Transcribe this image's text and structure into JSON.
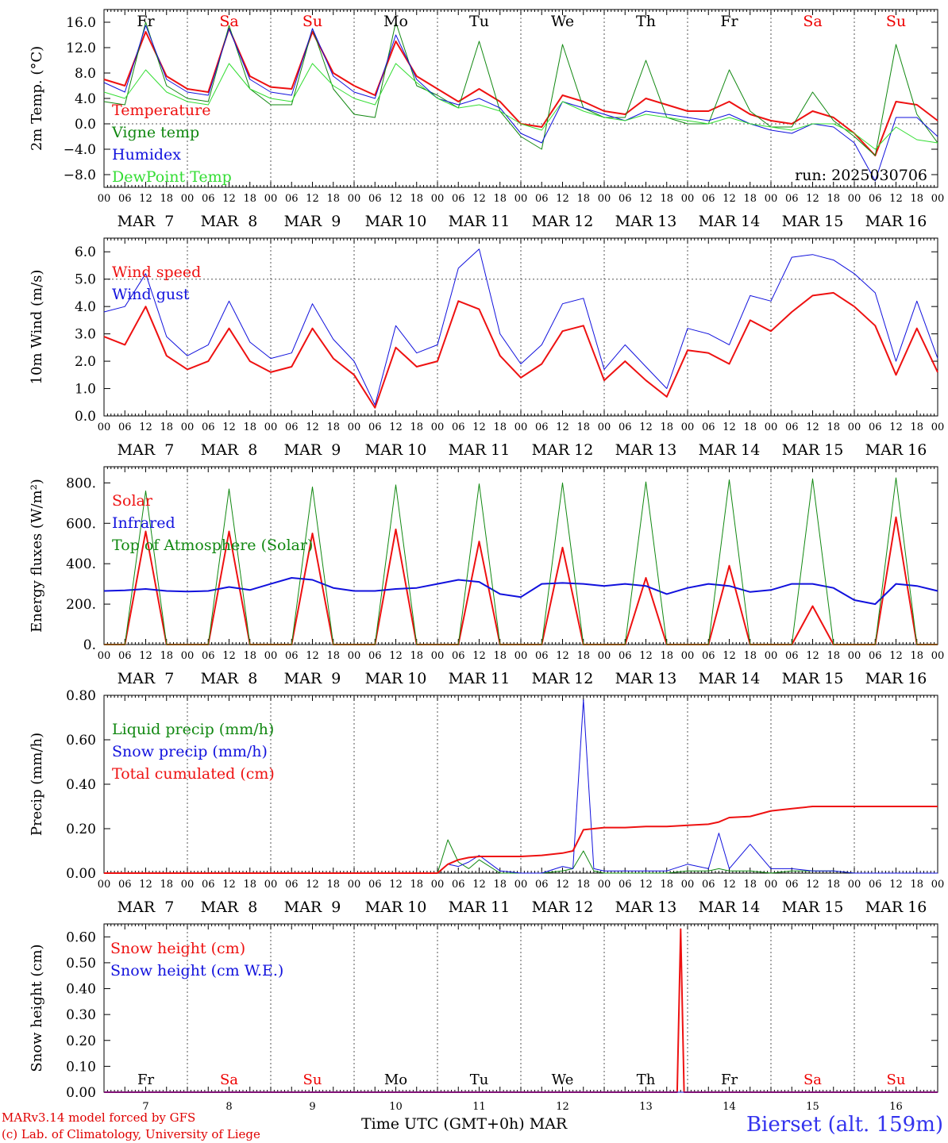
{
  "run_label": "run: 2025030706",
  "hour_ticks": [
    "00",
    "06",
    "12",
    "18"
  ],
  "last_hour_tick": "00",
  "date_labels": [
    "MAR  7",
    "MAR  8",
    "MAR  9",
    "MAR 10",
    "MAR 11",
    "MAR 12",
    "MAR 13",
    "MAR 14",
    "MAR 15",
    "MAR 16"
  ],
  "weekdays": [
    {
      "label": "Fr",
      "color": "#000000"
    },
    {
      "label": "Sa",
      "color": "#ee0000"
    },
    {
      "label": "Su",
      "color": "#ee0000"
    },
    {
      "label": "Mo",
      "color": "#000000"
    },
    {
      "label": "Tu",
      "color": "#000000"
    },
    {
      "label": "We",
      "color": "#000000"
    },
    {
      "label": "Th",
      "color": "#000000"
    },
    {
      "label": "Fr",
      "color": "#000000"
    },
    {
      "label": "Sa",
      "color": "#ee0000"
    },
    {
      "label": "Su",
      "color": "#ee0000"
    }
  ],
  "day_numbers": [
    "7",
    "8",
    "9",
    "10",
    "11",
    "12",
    "13",
    "14",
    "15",
    "16"
  ],
  "colors": {
    "red": "#ee1111",
    "green": "#118811",
    "blue": "#1111dd",
    "lightgreen": "#33dd33"
  },
  "footer": {
    "model_line": "MARv3.14 model forced by GFS",
    "lab_line": "(c) Lab. of Climatology, University of Liege",
    "time_axis": "Time UTC (GMT+0h)",
    "month": "MAR",
    "station": "Bierset (alt. 159m)"
  },
  "chart_data": [
    {
      "type": "line",
      "ylabel": "2m Temp. (°C)",
      "ylim": [
        -10,
        18
      ],
      "yticks": [
        -8,
        -4,
        0,
        4,
        8,
        12,
        16
      ],
      "ytick_labels": [
        "−8.0",
        "−4.0",
        "0.0",
        "4.0",
        "8.0",
        "12.0",
        "16.0"
      ],
      "ref_line": 0,
      "x_hours": [
        0,
        6,
        12,
        18,
        24,
        30,
        36,
        42,
        48,
        54,
        60,
        66,
        72,
        78,
        84,
        90,
        96,
        102,
        108,
        114,
        120,
        126,
        132,
        138,
        144,
        150,
        156,
        162,
        168,
        174,
        180,
        186,
        192,
        198,
        204,
        210,
        216,
        222,
        228,
        234,
        240
      ],
      "series": [
        {
          "name": "Temperature",
          "color": "red",
          "width": 2,
          "values": [
            7.0,
            6.0,
            14.5,
            7.5,
            5.5,
            5.0,
            15.0,
            7.5,
            5.8,
            5.5,
            14.5,
            8.0,
            6.0,
            4.5,
            13.0,
            7.5,
            5.5,
            3.5,
            5.5,
            3.5,
            0.0,
            -0.5,
            4.5,
            3.5,
            2.0,
            1.5,
            4.0,
            3.0,
            2.0,
            2.0,
            3.5,
            1.5,
            0.5,
            0.0,
            2.0,
            1.0,
            -1.5,
            -5.0,
            3.5,
            3.0,
            0.5
          ]
        },
        {
          "name": "Vigne temp",
          "color": "green",
          "width": 1,
          "values": [
            3.5,
            3.0,
            16.0,
            6.0,
            4.0,
            3.5,
            15.5,
            5.5,
            3.0,
            3.0,
            15.0,
            5.5,
            1.5,
            1.0,
            16.0,
            6.0,
            4.5,
            2.5,
            13.0,
            2.0,
            -2.0,
            -4.0,
            12.5,
            2.5,
            1.0,
            1.0,
            10.0,
            1.0,
            0.0,
            0.0,
            8.5,
            2.0,
            -0.5,
            -0.5,
            5.0,
            0.5,
            -2.0,
            -5.0,
            12.5,
            1.5,
            -3.0
          ]
        },
        {
          "name": "Humidex",
          "color": "blue",
          "width": 1,
          "values": [
            6.5,
            5.0,
            15.5,
            7.0,
            5.0,
            4.5,
            15.0,
            7.0,
            5.0,
            4.5,
            15.0,
            7.5,
            5.0,
            4.0,
            14.0,
            7.0,
            4.0,
            3.0,
            4.0,
            2.5,
            -1.5,
            -3.0,
            3.5,
            2.5,
            1.5,
            0.5,
            2.0,
            1.5,
            1.0,
            0.5,
            1.5,
            0.0,
            -1.0,
            -1.5,
            0.0,
            -0.5,
            -3.0,
            -9.0,
            1.0,
            1.0,
            -2.0
          ]
        },
        {
          "name": "DewPoint Temp",
          "color": "lightgreen",
          "width": 1,
          "values": [
            5.0,
            4.0,
            8.5,
            5.0,
            3.5,
            3.0,
            9.5,
            5.5,
            4.0,
            3.5,
            9.5,
            6.0,
            4.0,
            3.0,
            9.5,
            6.5,
            4.0,
            2.5,
            3.0,
            2.0,
            0.0,
            -1.0,
            3.5,
            2.0,
            1.0,
            0.5,
            1.5,
            1.0,
            0.5,
            0.0,
            1.0,
            0.0,
            -0.5,
            -1.0,
            0.0,
            0.0,
            -1.5,
            -4.0,
            -0.5,
            -2.5,
            -3.0
          ]
        }
      ]
    },
    {
      "type": "line",
      "ylabel": "10m Wind (m/s)",
      "ylim": [
        0,
        6.5
      ],
      "yticks": [
        0,
        1,
        2,
        3,
        4,
        5,
        6
      ],
      "ytick_labels": [
        "0.0",
        "1.0",
        "2.0",
        "3.0",
        "4.0",
        "5.0",
        "6.0"
      ],
      "ref_line": 5,
      "x_hours": [
        0,
        6,
        12,
        18,
        24,
        30,
        36,
        42,
        48,
        54,
        60,
        66,
        72,
        78,
        84,
        90,
        96,
        102,
        108,
        114,
        120,
        126,
        132,
        138,
        144,
        150,
        156,
        162,
        168,
        174,
        180,
        186,
        192,
        198,
        204,
        210,
        216,
        222,
        228,
        234,
        240
      ],
      "series": [
        {
          "name": "Wind speed",
          "color": "red",
          "width": 2,
          "values": [
            2.9,
            2.6,
            4.0,
            2.2,
            1.7,
            2.0,
            3.2,
            2.0,
            1.6,
            1.8,
            3.2,
            2.1,
            1.5,
            0.3,
            2.5,
            1.8,
            2.0,
            4.2,
            3.9,
            2.2,
            1.4,
            1.9,
            3.1,
            3.3,
            1.3,
            2.0,
            1.3,
            0.7,
            2.4,
            2.3,
            1.9,
            3.5,
            3.1,
            3.8,
            4.4,
            4.5,
            4.0,
            3.3,
            1.5,
            3.2,
            1.6
          ]
        },
        {
          "name": "Wind gust",
          "color": "blue",
          "width": 1,
          "values": [
            3.8,
            4.0,
            5.2,
            2.9,
            2.2,
            2.6,
            4.2,
            2.7,
            2.1,
            2.3,
            4.1,
            2.8,
            2.0,
            0.4,
            3.3,
            2.3,
            2.6,
            5.4,
            6.1,
            3.0,
            1.9,
            2.6,
            4.1,
            4.3,
            1.7,
            2.6,
            1.8,
            1.0,
            3.2,
            3.0,
            2.6,
            4.4,
            4.2,
            5.8,
            5.9,
            5.7,
            5.2,
            4.5,
            2.0,
            4.2,
            2.1
          ]
        }
      ]
    },
    {
      "type": "line",
      "ylabel": "Energy fluxes (W/m²)",
      "ylim": [
        0,
        880
      ],
      "yticks": [
        0,
        200,
        400,
        600,
        800
      ],
      "ytick_labels": [
        "0.",
        "200.",
        "400.",
        "600.",
        "800."
      ],
      "x_hours": [
        0,
        6,
        12,
        18,
        24,
        30,
        36,
        42,
        48,
        54,
        60,
        66,
        72,
        78,
        84,
        90,
        96,
        102,
        108,
        114,
        120,
        126,
        132,
        138,
        144,
        150,
        156,
        162,
        168,
        174,
        180,
        186,
        192,
        198,
        204,
        210,
        216,
        222,
        228,
        234,
        240
      ],
      "series": [
        {
          "name": "Solar",
          "color": "red",
          "width": 2,
          "values": [
            0,
            0,
            560,
            0,
            0,
            0,
            560,
            0,
            0,
            0,
            550,
            0,
            0,
            0,
            570,
            0,
            0,
            0,
            510,
            0,
            0,
            0,
            480,
            0,
            0,
            0,
            330,
            0,
            0,
            0,
            390,
            0,
            0,
            0,
            190,
            0,
            0,
            0,
            630,
            0,
            0
          ]
        },
        {
          "name": "Infrared",
          "color": "blue",
          "width": 2,
          "values": [
            265,
            268,
            275,
            265,
            262,
            265,
            285,
            270,
            300,
            330,
            320,
            280,
            265,
            265,
            275,
            280,
            300,
            320,
            310,
            250,
            235,
            300,
            305,
            300,
            290,
            300,
            290,
            250,
            280,
            300,
            290,
            260,
            270,
            300,
            300,
            280,
            220,
            200,
            300,
            290,
            265
          ]
        },
        {
          "name": "Top of Atmosphere (Solar)",
          "color": "green",
          "width": 1,
          "values": [
            0,
            0,
            760,
            0,
            0,
            0,
            770,
            0,
            0,
            0,
            780,
            0,
            0,
            0,
            790,
            0,
            0,
            0,
            795,
            0,
            0,
            0,
            800,
            0,
            0,
            0,
            805,
            0,
            0,
            0,
            815,
            0,
            0,
            0,
            820,
            0,
            0,
            0,
            825,
            0,
            0
          ]
        }
      ]
    },
    {
      "type": "line",
      "ylabel": "Precip (mm/h)",
      "ylim": [
        0,
        0.8
      ],
      "yticks": [
        0,
        0.2,
        0.4,
        0.6,
        0.8
      ],
      "ytick_labels": [
        "0.00",
        "0.20",
        "0.40",
        "0.60",
        "0.80"
      ],
      "x_hours": [
        0,
        6,
        12,
        18,
        24,
        30,
        36,
        42,
        48,
        54,
        60,
        66,
        72,
        78,
        84,
        90,
        96,
        99,
        102,
        105,
        108,
        114,
        120,
        126,
        132,
        135,
        138,
        141,
        144,
        150,
        156,
        162,
        168,
        174,
        177,
        180,
        186,
        192,
        198,
        204,
        210,
        216,
        222,
        228,
        234,
        240
      ],
      "series": [
        {
          "name": "Liquid precip (mm/h)",
          "color": "green",
          "width": 1,
          "values": [
            0,
            0,
            0,
            0,
            0,
            0,
            0,
            0,
            0,
            0,
            0,
            0,
            0,
            0,
            0,
            0,
            0,
            0.15,
            0.05,
            0.02,
            0.06,
            0,
            0,
            0,
            0.01,
            0.02,
            0.1,
            0.01,
            0,
            0,
            0,
            0,
            0.01,
            0.01,
            0.02,
            0.01,
            0.01,
            0,
            0.01,
            0.01,
            0.01,
            0,
            0,
            0,
            0,
            0
          ]
        },
        {
          "name": "Snow precip (mm/h)",
          "color": "blue",
          "width": 1,
          "values": [
            0,
            0,
            0,
            0,
            0,
            0,
            0,
            0,
            0,
            0,
            0,
            0,
            0,
            0,
            0,
            0,
            0,
            0.04,
            0.03,
            0.05,
            0.08,
            0.01,
            0,
            0,
            0.03,
            0.02,
            0.78,
            0.02,
            0.01,
            0.01,
            0.01,
            0.01,
            0.04,
            0.02,
            0.18,
            0.02,
            0.13,
            0.02,
            0.02,
            0.01,
            0.01,
            0,
            0,
            0,
            0,
            0
          ]
        },
        {
          "name": "Total cumulated (cm)",
          "color": "red",
          "width": 2,
          "values": [
            0,
            0,
            0,
            0,
            0,
            0,
            0,
            0,
            0,
            0,
            0,
            0,
            0,
            0,
            0,
            0,
            0,
            0.04,
            0.06,
            0.07,
            0.075,
            0.075,
            0.075,
            0.08,
            0.09,
            0.1,
            0.195,
            0.2,
            0.205,
            0.205,
            0.21,
            0.21,
            0.215,
            0.22,
            0.23,
            0.25,
            0.255,
            0.28,
            0.29,
            0.3,
            0.3,
            0.3,
            0.3,
            0.3,
            0.3,
            0.3
          ]
        }
      ]
    },
    {
      "type": "line",
      "ylabel": "Snow height (cm)",
      "ylim": [
        0,
        0.65
      ],
      "yticks": [
        0,
        0.1,
        0.2,
        0.3,
        0.4,
        0.5,
        0.6
      ],
      "ytick_labels": [
        "0.00",
        "0.10",
        "0.20",
        "0.30",
        "0.40",
        "0.50",
        "0.60"
      ],
      "x_hours": [
        0,
        165,
        166,
        167,
        240
      ],
      "series": [
        {
          "name": "Snow height (cm)",
          "color": "red",
          "width": 2,
          "values": [
            0,
            0,
            0.63,
            0,
            0
          ]
        },
        {
          "name": "Snow height (cm W.E.)",
          "color": "blue",
          "width": 1,
          "values": [
            0,
            0,
            0,
            0,
            0
          ]
        }
      ]
    }
  ]
}
